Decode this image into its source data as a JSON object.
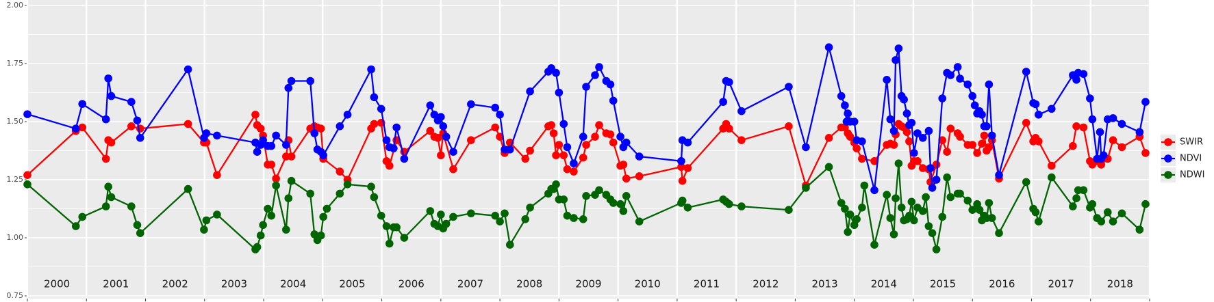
{
  "chart_data": {
    "type": "line",
    "xlim": [
      2000,
      2019
    ],
    "ylim": [
      0.75,
      2.0
    ],
    "yticks": [
      {
        "value": 0.75,
        "label": "0.75"
      },
      {
        "value": 1.0,
        "label": "1.00"
      },
      {
        "value": 1.25,
        "label": "1.25"
      },
      {
        "value": 1.5,
        "label": "1.50"
      },
      {
        "value": 1.75,
        "label": "1.75"
      },
      {
        "value": 2.0,
        "label": "2.00"
      }
    ],
    "xgrid": [
      2000,
      2001,
      2002,
      2003,
      2004,
      2005,
      2006,
      2007,
      2008,
      2009,
      2010,
      2011,
      2012,
      2013,
      2014,
      2015,
      2016,
      2017,
      2018,
      2019
    ],
    "xticks": [
      {
        "value": 2000.5,
        "label": "2000"
      },
      {
        "value": 2001.5,
        "label": "2001"
      },
      {
        "value": 2002.5,
        "label": "2002"
      },
      {
        "value": 2003.5,
        "label": "2003"
      },
      {
        "value": 2004.5,
        "label": "2004"
      },
      {
        "value": 2005.5,
        "label": "2005"
      },
      {
        "value": 2006.5,
        "label": "2006"
      },
      {
        "value": 2007.5,
        "label": "2007"
      },
      {
        "value": 2008.5,
        "label": "2008"
      },
      {
        "value": 2009.5,
        "label": "2009"
      },
      {
        "value": 2010.5,
        "label": "2010"
      },
      {
        "value": 2011.5,
        "label": "2011"
      },
      {
        "value": 2012.5,
        "label": "2012"
      },
      {
        "value": 2013.5,
        "label": "2013"
      },
      {
        "value": 2014.5,
        "label": "2014"
      },
      {
        "value": 2015.5,
        "label": "2015"
      },
      {
        "value": 2016.5,
        "label": "2016"
      },
      {
        "value": 2017.5,
        "label": "2017"
      },
      {
        "value": 2018.5,
        "label": "2018"
      }
    ],
    "grid": true,
    "legend": "right",
    "series": [
      {
        "name": "SWIR",
        "color": "#ff0000",
        "x": [
          2000.0,
          2000.82,
          2000.93,
          2001.33,
          2001.37,
          2001.42,
          2001.76,
          2001.91,
          2002.72,
          2002.99,
          2003.03,
          2003.21,
          2003.86,
          2003.89,
          2003.95,
          2003.99,
          2004.07,
          2004.13,
          2004.21,
          2004.38,
          2004.42,
          2004.47,
          2004.79,
          2004.86,
          2004.91,
          2004.97,
          2005.01,
          2005.29,
          2005.42,
          2005.82,
          2005.87,
          2005.99,
          2006.08,
          2006.13,
          2006.25,
          2006.38,
          2006.82,
          2006.89,
          2006.95,
          2007.0,
          2007.04,
          2007.21,
          2007.51,
          2007.92,
          2008.0,
          2008.08,
          2008.17,
          2008.43,
          2008.51,
          2008.82,
          2008.87,
          2008.91,
          2008.95,
          2009.0,
          2009.08,
          2009.14,
          2009.25,
          2009.41,
          2009.46,
          2009.61,
          2009.68,
          2009.8,
          2009.87,
          2009.92,
          2010.04,
          2010.09,
          2010.14,
          2010.36,
          2011.07,
          2011.09,
          2011.18,
          2011.78,
          2011.83,
          2011.88,
          2012.09,
          2012.89,
          2013.18,
          2013.57,
          2013.78,
          2013.84,
          2013.89,
          2013.93,
          2014.0,
          2014.04,
          2014.13,
          2014.34,
          2014.55,
          2014.61,
          2014.67,
          2014.7,
          2014.75,
          2014.8,
          2014.84,
          2014.89,
          2014.93,
          2014.97,
          2015.01,
          2015.07,
          2015.16,
          2015.26,
          2015.29,
          2015.39,
          2015.49,
          2015.57,
          2015.63,
          2015.75,
          2015.79,
          2015.92,
          2016.0,
          2016.08,
          2016.16,
          2016.2,
          2016.24,
          2016.28,
          2016.33,
          2016.45,
          2016.91,
          2017.03,
          2017.07,
          2017.12,
          2017.34,
          2017.7,
          2017.76,
          2017.88,
          2017.99,
          2018.03,
          2018.11,
          2018.18,
          2018.29,
          2018.38,
          2018.53,
          2018.83,
          2018.93
        ],
        "values": [
          1.27,
          1.46,
          1.475,
          1.34,
          1.42,
          1.41,
          1.48,
          1.47,
          1.49,
          1.41,
          1.41,
          1.27,
          1.53,
          1.485,
          1.47,
          1.44,
          1.315,
          1.315,
          1.255,
          1.35,
          1.42,
          1.35,
          1.47,
          1.48,
          1.475,
          1.47,
          1.34,
          1.285,
          1.25,
          1.47,
          1.49,
          1.495,
          1.33,
          1.31,
          1.42,
          1.37,
          1.46,
          1.435,
          1.43,
          1.355,
          1.45,
          1.295,
          1.42,
          1.475,
          1.435,
          1.365,
          1.41,
          1.34,
          1.375,
          1.48,
          1.485,
          1.45,
          1.355,
          1.4,
          1.355,
          1.295,
          1.285,
          1.345,
          1.4,
          1.435,
          1.485,
          1.45,
          1.445,
          1.41,
          1.31,
          1.315,
          1.255,
          1.265,
          1.305,
          1.245,
          1.3,
          1.47,
          1.49,
          1.47,
          1.42,
          1.48,
          1.225,
          1.43,
          1.475,
          1.475,
          1.45,
          1.435,
          1.41,
          1.385,
          1.34,
          1.33,
          1.4,
          1.405,
          1.4,
          1.445,
          1.49,
          1.48,
          1.475,
          1.455,
          1.415,
          1.31,
          1.33,
          1.33,
          1.3,
          1.295,
          1.24,
          1.315,
          1.42,
          1.37,
          1.47,
          1.45,
          1.435,
          1.4,
          1.4,
          1.365,
          1.405,
          1.44,
          1.375,
          1.39,
          1.42,
          1.255,
          1.495,
          1.415,
          1.43,
          1.415,
          1.31,
          1.395,
          1.48,
          1.475,
          1.33,
          1.315,
          1.33,
          1.315,
          1.34,
          1.42,
          1.39,
          1.435,
          1.365
        ]
      },
      {
        "name": "NDVI",
        "color": "#0000ff",
        "x": [
          2000.0,
          2000.82,
          2000.93,
          2001.33,
          2001.37,
          2001.42,
          2001.76,
          2001.86,
          2001.91,
          2002.72,
          2002.99,
          2003.03,
          2003.21,
          2003.86,
          2003.89,
          2003.95,
          2003.99,
          2004.07,
          2004.13,
          2004.21,
          2004.38,
          2004.42,
          2004.47,
          2004.79,
          2004.86,
          2004.91,
          2004.97,
          2005.01,
          2005.29,
          2005.42,
          2005.82,
          2005.87,
          2005.99,
          2006.08,
          2006.13,
          2006.2,
          2006.25,
          2006.38,
          2006.82,
          2006.89,
          2006.95,
          2007.0,
          2007.04,
          2007.09,
          2007.21,
          2007.51,
          2007.92,
          2008.0,
          2008.08,
          2008.17,
          2008.51,
          2008.82,
          2008.87,
          2008.95,
          2009.0,
          2009.08,
          2009.14,
          2009.25,
          2009.41,
          2009.46,
          2009.61,
          2009.68,
          2009.8,
          2009.87,
          2009.92,
          2010.04,
          2010.09,
          2010.14,
          2010.36,
          2011.07,
          2011.09,
          2011.18,
          2011.78,
          2011.83,
          2011.88,
          2012.09,
          2012.89,
          2013.18,
          2013.57,
          2013.78,
          2013.84,
          2013.87,
          2013.89,
          2013.93,
          2014.0,
          2014.04,
          2014.13,
          2014.34,
          2014.55,
          2014.61,
          2014.67,
          2014.7,
          2014.75,
          2014.8,
          2014.84,
          2014.89,
          2014.93,
          2014.97,
          2015.01,
          2015.07,
          2015.16,
          2015.26,
          2015.29,
          2015.32,
          2015.39,
          2015.49,
          2015.57,
          2015.63,
          2015.75,
          2015.79,
          2015.92,
          2016.0,
          2016.04,
          2016.08,
          2016.12,
          2016.16,
          2016.2,
          2016.24,
          2016.28,
          2016.33,
          2016.45,
          2016.91,
          2017.03,
          2017.07,
          2017.12,
          2017.34,
          2017.7,
          2017.76,
          2017.79,
          2017.88,
          2017.99,
          2018.03,
          2018.11,
          2018.16,
          2018.18,
          2018.22,
          2018.29,
          2018.38,
          2018.53,
          2018.83,
          2018.93
        ],
        "values": [
          1.532,
          1.47,
          1.576,
          1.51,
          1.686,
          1.61,
          1.585,
          1.505,
          1.43,
          1.725,
          1.43,
          1.45,
          1.44,
          1.41,
          1.37,
          1.4,
          1.42,
          1.395,
          1.395,
          1.44,
          1.4,
          1.645,
          1.675,
          1.675,
          1.45,
          1.38,
          1.37,
          1.355,
          1.48,
          1.53,
          1.725,
          1.605,
          1.555,
          1.42,
          1.39,
          1.385,
          1.475,
          1.34,
          1.57,
          1.53,
          1.505,
          1.52,
          1.48,
          1.435,
          1.37,
          1.575,
          1.56,
          1.53,
          1.38,
          1.38,
          1.63,
          1.715,
          1.73,
          1.71,
          1.625,
          1.49,
          1.39,
          1.32,
          1.435,
          1.65,
          1.7,
          1.735,
          1.675,
          1.66,
          1.59,
          1.435,
          1.39,
          1.41,
          1.35,
          1.33,
          1.42,
          1.41,
          1.585,
          1.675,
          1.67,
          1.545,
          1.65,
          1.39,
          1.82,
          1.61,
          1.57,
          1.5,
          1.535,
          1.5,
          1.5,
          1.42,
          1.415,
          1.205,
          1.68,
          1.51,
          1.46,
          1.765,
          1.815,
          1.61,
          1.595,
          1.535,
          1.485,
          1.495,
          1.365,
          1.45,
          1.43,
          1.46,
          1.3,
          1.215,
          1.25,
          1.6,
          1.71,
          1.7,
          1.735,
          1.685,
          1.66,
          1.61,
          1.57,
          1.535,
          1.545,
          1.53,
          1.48,
          1.48,
          1.66,
          1.44,
          1.27,
          1.715,
          1.58,
          1.575,
          1.53,
          1.555,
          1.7,
          1.68,
          1.71,
          1.705,
          1.6,
          1.51,
          1.34,
          1.455,
          1.34,
          1.355,
          1.51,
          1.515,
          1.49,
          1.455,
          1.585
        ]
      },
      {
        "name": "NDWI",
        "color": "#006400",
        "x": [
          2000.0,
          2000.82,
          2000.93,
          2001.33,
          2001.37,
          2001.42,
          2001.76,
          2001.86,
          2001.91,
          2002.72,
          2002.99,
          2003.03,
          2003.21,
          2003.86,
          2003.89,
          2003.95,
          2003.99,
          2004.07,
          2004.13,
          2004.21,
          2004.38,
          2004.42,
          2004.47,
          2004.79,
          2004.86,
          2004.91,
          2004.97,
          2005.01,
          2005.07,
          2005.29,
          2005.42,
          2005.82,
          2005.87,
          2005.99,
          2006.08,
          2006.13,
          2006.2,
          2006.25,
          2006.38,
          2006.82,
          2006.89,
          2006.95,
          2007.0,
          2007.04,
          2007.09,
          2007.21,
          2007.51,
          2007.92,
          2008.0,
          2008.08,
          2008.17,
          2008.43,
          2008.51,
          2008.82,
          2008.87,
          2008.91,
          2008.95,
          2009.0,
          2009.08,
          2009.14,
          2009.25,
          2009.41,
          2009.46,
          2009.61,
          2009.68,
          2009.8,
          2009.87,
          2009.92,
          2010.04,
          2010.09,
          2010.14,
          2010.36,
          2011.07,
          2011.09,
          2011.18,
          2011.78,
          2011.83,
          2011.88,
          2012.09,
          2012.89,
          2013.18,
          2013.57,
          2013.78,
          2013.84,
          2013.89,
          2013.93,
          2014.0,
          2014.04,
          2014.13,
          2014.17,
          2014.34,
          2014.55,
          2014.61,
          2014.67,
          2014.7,
          2014.75,
          2014.8,
          2014.84,
          2014.89,
          2014.93,
          2014.97,
          2015.01,
          2015.07,
          2015.16,
          2015.21,
          2015.26,
          2015.32,
          2015.39,
          2015.49,
          2015.57,
          2015.63,
          2015.75,
          2015.79,
          2015.92,
          2016.0,
          2016.08,
          2016.12,
          2016.16,
          2016.2,
          2016.24,
          2016.28,
          2016.33,
          2016.45,
          2016.91,
          2017.03,
          2017.07,
          2017.12,
          2017.34,
          2017.7,
          2017.76,
          2017.79,
          2017.88,
          2017.99,
          2018.03,
          2018.11,
          2018.18,
          2018.29,
          2018.38,
          2018.53,
          2018.83,
          2018.93
        ],
        "values": [
          1.23,
          1.05,
          1.09,
          1.135,
          1.22,
          1.175,
          1.135,
          1.055,
          1.02,
          1.21,
          1.035,
          1.075,
          1.1,
          0.95,
          0.96,
          1.01,
          1.055,
          1.125,
          1.095,
          1.225,
          1.035,
          1.17,
          1.245,
          1.19,
          1.015,
          0.99,
          1.01,
          1.09,
          1.125,
          1.19,
          1.23,
          1.22,
          1.175,
          1.095,
          1.05,
          0.975,
          1.045,
          1.045,
          1.0,
          1.115,
          1.06,
          1.05,
          1.1,
          1.04,
          1.06,
          1.09,
          1.105,
          1.095,
          1.07,
          1.105,
          0.97,
          1.08,
          1.13,
          1.19,
          1.21,
          1.21,
          1.23,
          1.165,
          1.165,
          1.095,
          1.085,
          1.08,
          1.18,
          1.185,
          1.205,
          1.185,
          1.165,
          1.15,
          1.145,
          1.115,
          1.18,
          1.07,
          1.15,
          1.16,
          1.13,
          1.165,
          1.155,
          1.145,
          1.135,
          1.12,
          1.215,
          1.305,
          1.15,
          1.125,
          1.025,
          1.1,
          1.055,
          1.08,
          1.13,
          1.225,
          0.97,
          1.185,
          1.085,
          1.015,
          1.17,
          1.32,
          1.13,
          1.075,
          1.08,
          1.095,
          1.155,
          1.075,
          1.13,
          1.115,
          1.175,
          1.05,
          1.02,
          0.95,
          1.09,
          1.26,
          1.175,
          1.19,
          1.19,
          1.16,
          1.12,
          1.145,
          1.12,
          1.075,
          1.095,
          1.085,
          1.15,
          1.085,
          1.02,
          1.24,
          1.125,
          1.11,
          1.07,
          1.26,
          1.135,
          1.17,
          1.205,
          1.205,
          1.13,
          1.145,
          1.085,
          1.07,
          1.11,
          1.07,
          1.105,
          1.035,
          1.145
        ]
      }
    ]
  }
}
